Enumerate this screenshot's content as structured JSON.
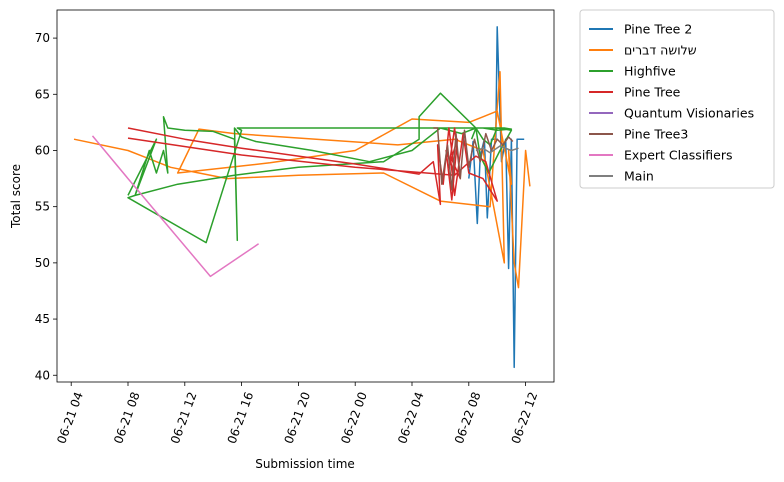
{
  "chart_data": {
    "type": "line",
    "xlabel": "Submission time",
    "ylabel": "Total score",
    "x_ticks": [
      "06-21 04",
      "06-21 08",
      "06-21 12",
      "06-21 16",
      "06-21 20",
      "06-22 00",
      "06-22 04",
      "06-22 08",
      "06-22 12"
    ],
    "x_tick_hours": [
      4,
      8,
      12,
      16,
      20,
      24,
      28,
      32,
      36
    ],
    "x_tick_rotation_deg": 70,
    "y_ticks": [
      40,
      45,
      50,
      55,
      60,
      65,
      70
    ],
    "xlim_hours": [
      3.0,
      38.0
    ],
    "ylim": [
      39.4,
      72.5
    ],
    "grid": false,
    "legend_position": "outside-top-right",
    "series": [
      {
        "name": "Pine Tree 2",
        "color": "#1f77b4",
        "x": [
          32.0,
          32.3,
          32.6,
          32.8,
          33.1,
          33.3,
          33.6,
          33.9,
          34.0,
          34.3,
          34.6,
          34.8,
          35.0,
          35.2,
          35.4,
          35.7,
          35.9
        ],
        "y": [
          57.5,
          60.8,
          53.5,
          59.5,
          61.0,
          54.0,
          61.0,
          61.0,
          71.0,
          59.0,
          61.0,
          49.5,
          61.0,
          40.7,
          61.0,
          61.0,
          61.0
        ]
      },
      {
        "name": "שלושה דברים",
        "color": "#ff7f0e",
        "x": [
          4.2,
          8.0,
          9.0,
          11.0,
          13.0,
          15.0,
          20.0,
          26.0,
          30.0,
          33.5,
          34.0,
          34.2,
          34.5,
          33.0,
          31.0,
          27.0,
          15.5,
          13.0,
          11.5,
          18.0,
          24.0,
          28.0,
          32.0,
          33.0,
          34.0,
          35.0,
          34.8,
          35.2,
          35.5,
          36.0,
          36.3
        ],
        "y": [
          61.0,
          60.0,
          59.5,
          58.5,
          58.0,
          57.5,
          57.8,
          58.0,
          55.5,
          55.0,
          63.8,
          67.0,
          50.0,
          60.0,
          61.0,
          60.5,
          61.5,
          61.9,
          58.0,
          58.9,
          60.0,
          62.8,
          62.5,
          63.0,
          63.5,
          57.0,
          60.0,
          50.0,
          47.8,
          60.0,
          56.8
        ]
      },
      {
        "name": "Highfive",
        "color": "#2ca02c",
        "x": [
          8.0,
          10.0,
          8.5,
          9.5,
          10.0,
          10.5,
          10.8,
          10.5,
          10.8,
          12.0,
          14.0,
          15.5,
          15.7,
          15.5,
          16.0,
          17.0,
          21.0,
          25.0,
          28.0,
          29.0,
          30.0,
          31.5,
          32.5,
          33.0,
          34.0,
          35.0,
          34.5,
          33.5,
          31.0,
          15.7,
          16.0,
          13.5,
          8.0,
          8.5,
          11.5,
          15.5,
          20.0,
          26.0,
          28.5,
          28.5,
          30.0,
          32.5,
          33.0,
          33.5,
          34.0,
          35.0,
          34.2,
          33.4,
          32.8,
          32.5,
          32.2
        ],
        "y": [
          56.0,
          61.0,
          56.0,
          60.0,
          58.0,
          60.0,
          58.0,
          63.0,
          62.0,
          61.8,
          61.7,
          61.0,
          52.0,
          62.0,
          61.2,
          60.8,
          60.0,
          59.0,
          60.0,
          61.0,
          62.0,
          61.5,
          62.0,
          62.0,
          61.8,
          61.9,
          62.0,
          62.0,
          62.0,
          62.0,
          61.8,
          51.8,
          55.8,
          56.0,
          57.0,
          57.8,
          58.5,
          59.0,
          61.0,
          63.0,
          65.1,
          62.0,
          61.0,
          60.5,
          62.0,
          61.8,
          60.0,
          58.0,
          59.5,
          62.0,
          61.0
        ]
      },
      {
        "name": "Pine Tree",
        "color": "#d62728",
        "x": [
          8.0,
          12.0,
          16.0,
          20.0,
          24.0,
          27.0,
          28.5,
          29.5,
          30.0,
          29.8,
          30.2,
          30.6,
          31.0,
          30.4,
          30.8,
          31.2,
          30.6,
          31.0,
          31.4,
          30.7,
          31.0,
          31.6,
          32.0,
          33.0,
          33.5,
          34.0,
          33.2,
          32.5,
          31.0,
          24.0,
          16.0,
          8.0
        ],
        "y": [
          62.0,
          61.0,
          60.2,
          59.5,
          58.8,
          58.2,
          57.9,
          59.0,
          55.2,
          60.5,
          57.0,
          62.0,
          58.0,
          60.0,
          55.6,
          61.0,
          58.5,
          62.0,
          57.5,
          59.5,
          56.0,
          61.5,
          58.0,
          57.5,
          56.5,
          55.5,
          59.0,
          59.5,
          57.8,
          58.5,
          59.6,
          61.1
        ]
      },
      {
        "name": "Quantum Visionaries",
        "color": "#9467bd",
        "x": [],
        "y": []
      },
      {
        "name": "Pine Tree3",
        "color": "#8c564b",
        "x": [
          29.5,
          29.8,
          30.1,
          30.5,
          30.8,
          31.1,
          31.4,
          31.7,
          32.0,
          32.4,
          32.8,
          33.2,
          33.6,
          34.0,
          34.4,
          34.8,
          35.1
        ],
        "y": [
          62.0,
          62.0,
          57.0,
          60.5,
          56.5,
          61.5,
          57.5,
          61.8,
          58.5,
          61.0,
          59.0,
          61.5,
          60.0,
          61.0,
          60.5,
          61.2,
          60.8
        ]
      },
      {
        "name": "Expert Classifiers",
        "color": "#e377c2",
        "x": [
          5.5,
          8.0,
          13.8,
          17.2
        ],
        "y": [
          61.3,
          57.5,
          48.8,
          51.7
        ]
      },
      {
        "name": "Main",
        "color": "#7f7f7f",
        "x": [
          32.5,
          33.0,
          33.5,
          34.2,
          35.0,
          35.5
        ],
        "y": [
          60.0,
          60.2,
          59.8,
          60.4,
          60.0,
          60.2
        ]
      }
    ]
  }
}
